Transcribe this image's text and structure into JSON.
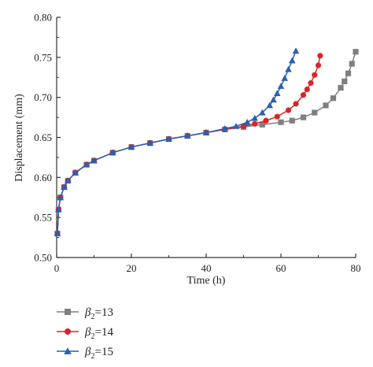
{
  "chart_data": {
    "type": "scatter",
    "title": "",
    "xlabel": "Time (h)",
    "ylabel": "Displacement (mm)",
    "xlim": [
      0,
      80
    ],
    "ylim": [
      0.5,
      0.8
    ],
    "x_ticks": [
      "0",
      "20",
      "40",
      "60",
      "80"
    ],
    "y_ticks": [
      "0.50",
      "0.55",
      "0.60",
      "0.65",
      "0.70",
      "0.75",
      "0.80"
    ],
    "grid": false,
    "legend_position": "bottom-left, below the plot",
    "series": [
      {
        "name": "β2=13",
        "name_main": "β",
        "name_sub": "2",
        "name_rest": "=13",
        "color": "#7f7f7f",
        "marker": "square",
        "x": [
          0.2,
          0.5,
          1,
          2,
          3,
          5,
          8,
          10,
          15,
          20,
          25,
          30,
          35,
          40,
          45,
          50,
          55,
          60,
          63,
          66,
          69,
          72,
          74,
          76,
          77,
          78,
          79,
          80
        ],
        "y": [
          0.53,
          0.56,
          0.575,
          0.588,
          0.596,
          0.606,
          0.616,
          0.621,
          0.631,
          0.638,
          0.643,
          0.648,
          0.652,
          0.656,
          0.66,
          0.663,
          0.666,
          0.669,
          0.671,
          0.675,
          0.681,
          0.69,
          0.699,
          0.712,
          0.72,
          0.73,
          0.742,
          0.757
        ]
      },
      {
        "name": "β2=14",
        "name_main": "β",
        "name_sub": "2",
        "name_rest": "=14",
        "color": "#d62728",
        "marker": "circle",
        "x": [
          0.2,
          0.5,
          1,
          2,
          3,
          5,
          8,
          10,
          15,
          20,
          25,
          30,
          35,
          40,
          45,
          50,
          53,
          56,
          59,
          62,
          64,
          66,
          67,
          68,
          69,
          70,
          70.5
        ],
        "y": [
          0.53,
          0.56,
          0.575,
          0.588,
          0.596,
          0.606,
          0.616,
          0.621,
          0.631,
          0.638,
          0.643,
          0.648,
          0.652,
          0.656,
          0.66,
          0.664,
          0.667,
          0.671,
          0.676,
          0.684,
          0.692,
          0.703,
          0.71,
          0.718,
          0.728,
          0.74,
          0.752
        ]
      },
      {
        "name": "β2=15",
        "name_main": "β",
        "name_sub": "2",
        "name_rest": "=15",
        "color": "#2b5fb3",
        "marker": "triangle",
        "x": [
          0.2,
          0.5,
          1,
          2,
          3,
          5,
          8,
          10,
          15,
          20,
          25,
          30,
          35,
          40,
          45,
          48,
          51,
          53,
          55,
          57,
          58,
          59,
          60,
          61,
          62,
          63,
          64
        ],
        "y": [
          0.53,
          0.56,
          0.575,
          0.588,
          0.596,
          0.606,
          0.616,
          0.621,
          0.631,
          0.638,
          0.643,
          0.648,
          0.652,
          0.656,
          0.661,
          0.664,
          0.669,
          0.674,
          0.681,
          0.69,
          0.697,
          0.705,
          0.714,
          0.724,
          0.735,
          0.746,
          0.758
        ]
      }
    ]
  }
}
